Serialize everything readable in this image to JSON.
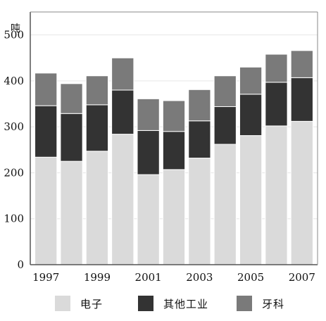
{
  "chart_data": {
    "type": "bar",
    "stacked": true,
    "ylabel": "吨",
    "ylim": [
      0,
      550
    ],
    "yticks": [
      0,
      100,
      200,
      300,
      400,
      500
    ],
    "categories": [
      "1997",
      "1998",
      "1999",
      "2000",
      "2001",
      "2002",
      "2003",
      "2004",
      "2005",
      "2006",
      "2007"
    ],
    "xticklabels": [
      "1997",
      "",
      "1999",
      "",
      "2001",
      "",
      "2003",
      "",
      "2005",
      "",
      "2007"
    ],
    "grid": true,
    "legend_position": "bottom",
    "series": [
      {
        "name": "电子",
        "color": "#dadada",
        "values": [
          234,
          225,
          247,
          284,
          196,
          207,
          232,
          262,
          281,
          302,
          312
        ]
      },
      {
        "name": "其他工业",
        "color": "#333333",
        "values": [
          112,
          104,
          101,
          96,
          96,
          83,
          81,
          82,
          90,
          95,
          95
        ]
      },
      {
        "name": "牙科",
        "color": "#7a7a7a",
        "values": [
          71,
          65,
          63,
          70,
          69,
          67,
          68,
          67,
          59,
          61,
          59
        ]
      }
    ]
  }
}
